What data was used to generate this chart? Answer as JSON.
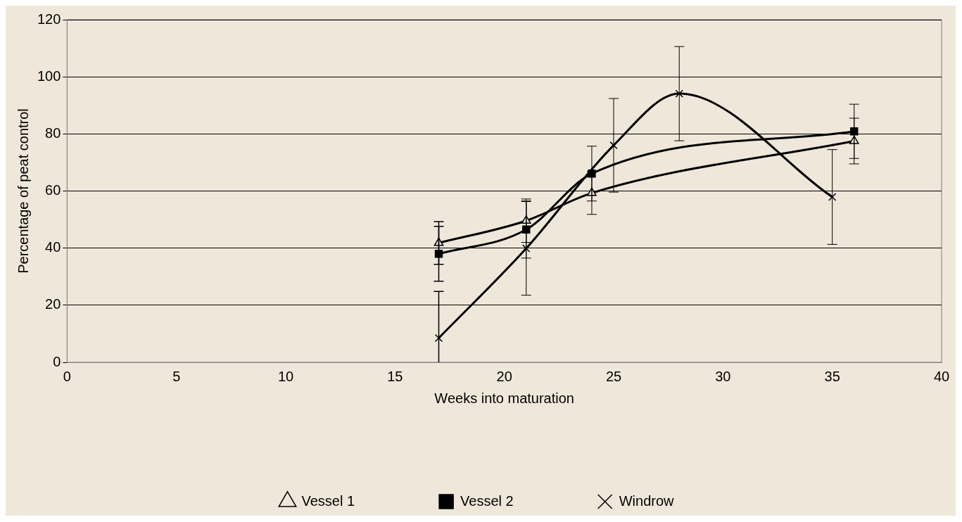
{
  "chart_data": {
    "type": "line",
    "xlabel": "Weeks into maturation",
    "ylabel": "Percentage of peat control",
    "xlim": [
      0,
      40
    ],
    "xticks": [
      0,
      5,
      10,
      15,
      20,
      25,
      30,
      35,
      40
    ],
    "ylim": [
      0,
      120
    ],
    "yticks": [
      0,
      20,
      40,
      60,
      80,
      100,
      120
    ],
    "grid": "y",
    "legend": "bottom",
    "series": [
      {
        "name": "Vessel 1",
        "color": "#000000",
        "marker": "triangle",
        "x": [
          17,
          21,
          24,
          36
        ],
        "values": [
          41.8,
          49.6,
          59.3,
          77.5
        ],
        "errors": [
          7.5,
          7.6,
          7.5,
          8
        ]
      },
      {
        "name": "Vessel 2",
        "color": "#000000",
        "marker": "square",
        "x": [
          17,
          21,
          24,
          36
        ],
        "values": [
          38,
          46.5,
          66.1,
          80.9
        ],
        "errors": [
          9.6,
          10,
          9.6,
          9.5
        ]
      },
      {
        "name": "Windrow",
        "color": "#000000",
        "marker": "cross",
        "x": [
          17,
          21,
          25,
          28,
          35
        ],
        "values": [
          8.5,
          39.9,
          76,
          94.1,
          57.9
        ],
        "errors": [
          [
            0,
            24.8
          ],
          16.4,
          16.4,
          16.5,
          16.6
        ]
      }
    ]
  }
}
